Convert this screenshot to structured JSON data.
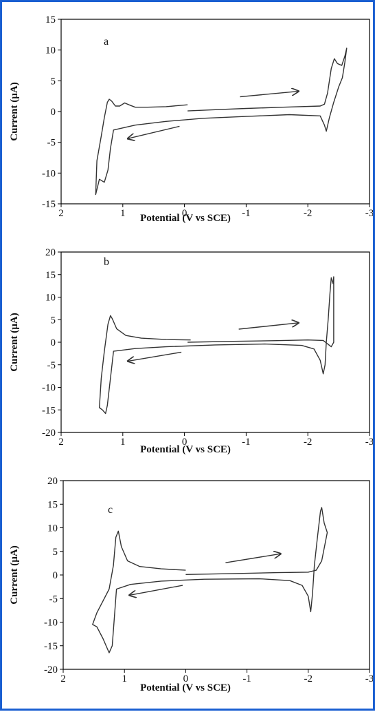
{
  "frame_color": "#1a5fd1",
  "line_color": "#333333",
  "chart_data": [
    {
      "type": "line",
      "label": "a",
      "xlabel": "Potential (V vs SCE)",
      "ylabel": "Current (µA)",
      "xlim": [
        2,
        -3
      ],
      "ylim": [
        -15,
        15
      ],
      "xticks": [
        "2",
        "1",
        "0",
        "-1",
        "-2",
        "-3"
      ],
      "yticks": [
        "15",
        "10",
        "5",
        "0",
        "-5",
        "-10",
        "-15"
      ],
      "ytick_values": [
        15,
        10,
        5,
        0,
        -5,
        -10,
        -15
      ],
      "xtick_values": [
        2,
        1,
        0,
        -1,
        -2,
        -3
      ],
      "grid": false,
      "series": [
        {
          "points": [
            [
              -0.05,
              1.1
            ],
            [
              0.3,
              0.8
            ],
            [
              0.6,
              0.7
            ],
            [
              0.8,
              0.7
            ],
            [
              0.9,
              1.1
            ],
            [
              0.97,
              1.4
            ],
            [
              1.05,
              0.9
            ],
            [
              1.12,
              0.9
            ],
            [
              1.18,
              1.7
            ],
            [
              1.22,
              2.0
            ],
            [
              1.25,
              1.5
            ],
            [
              1.3,
              -1.0
            ],
            [
              1.35,
              -4.0
            ],
            [
              1.42,
              -8.0
            ],
            [
              1.44,
              -13.5
            ],
            [
              1.38,
              -11.0
            ],
            [
              1.3,
              -11.5
            ],
            [
              1.24,
              -9.5
            ],
            [
              1.2,
              -6.0
            ],
            [
              1.15,
              -3.0
            ],
            [
              0.8,
              -2.2
            ],
            [
              0.3,
              -1.6
            ],
            [
              -0.3,
              -1.1
            ],
            [
              -1.0,
              -0.8
            ],
            [
              -1.7,
              -0.5
            ],
            [
              -2.2,
              -0.7
            ],
            [
              -2.27,
              -2.2
            ],
            [
              -2.3,
              -3.2
            ],
            [
              -2.35,
              -1.0
            ],
            [
              -2.42,
              1.5
            ],
            [
              -2.5,
              4.0
            ],
            [
              -2.56,
              5.5
            ],
            [
              -2.6,
              8.0
            ],
            [
              -2.63,
              10.3
            ],
            [
              -2.6,
              9.0
            ],
            [
              -2.55,
              7.5
            ],
            [
              -2.48,
              7.8
            ],
            [
              -2.43,
              8.6
            ],
            [
              -2.38,
              7.0
            ],
            [
              -2.32,
              3.0
            ],
            [
              -2.27,
              1.2
            ],
            [
              -2.2,
              0.9
            ],
            [
              -1.6,
              0.7
            ],
            [
              -1.0,
              0.5
            ],
            [
              -0.5,
              0.3
            ],
            [
              -0.05,
              0.1
            ]
          ]
        }
      ],
      "arrows": [
        {
          "x0": -0.9,
          "y0": 2.4,
          "x1": -1.85,
          "y1": 3.3
        },
        {
          "x0": 0.08,
          "y0": -2.4,
          "x1": 0.92,
          "y1": -4.4
        }
      ]
    },
    {
      "type": "line",
      "label": "b",
      "xlabel": "Potential (V vs SCE)",
      "ylabel": "Current (µA)",
      "xlim": [
        2,
        -3
      ],
      "ylim": [
        -20,
        20
      ],
      "xticks": [
        "2",
        "1",
        "0",
        "-1",
        "-2",
        "-3"
      ],
      "yticks": [
        "20",
        "15",
        "10",
        "5",
        "0",
        "-5",
        "-10",
        "-15",
        "-20"
      ],
      "ytick_values": [
        20,
        15,
        10,
        5,
        0,
        -5,
        -10,
        -15,
        -20
      ],
      "xtick_values": [
        2,
        1,
        0,
        -1,
        -2,
        -3
      ],
      "grid": false,
      "series": [
        {
          "points": [
            [
              -0.1,
              0.5
            ],
            [
              0.3,
              0.6
            ],
            [
              0.7,
              0.9
            ],
            [
              0.95,
              1.5
            ],
            [
              1.1,
              3.0
            ],
            [
              1.17,
              5.2
            ],
            [
              1.2,
              5.9
            ],
            [
              1.24,
              4.0
            ],
            [
              1.3,
              -2.0
            ],
            [
              1.35,
              -8.0
            ],
            [
              1.38,
              -14.5
            ],
            [
              1.33,
              -15.0
            ],
            [
              1.28,
              -15.8
            ],
            [
              1.25,
              -14.0
            ],
            [
              1.2,
              -8.0
            ],
            [
              1.15,
              -2.0
            ],
            [
              0.8,
              -1.4
            ],
            [
              0.3,
              -1.0
            ],
            [
              -0.5,
              -0.6
            ],
            [
              -1.3,
              -0.4
            ],
            [
              -1.9,
              -0.7
            ],
            [
              -2.1,
              -1.5
            ],
            [
              -2.2,
              -4.0
            ],
            [
              -2.25,
              -7.0
            ],
            [
              -2.28,
              -5.0
            ],
            [
              -2.3,
              0.0
            ],
            [
              -2.33,
              5.0
            ],
            [
              -2.36,
              11.0
            ],
            [
              -2.38,
              14.3
            ],
            [
              -2.41,
              13.0
            ],
            [
              -2.42,
              14.5
            ],
            [
              -2.42,
              0.0
            ],
            [
              -2.38,
              -1.0
            ],
            [
              -2.25,
              0.4
            ],
            [
              -2.0,
              0.5
            ],
            [
              -1.5,
              0.35
            ],
            [
              -0.8,
              0.2
            ],
            [
              -0.05,
              0.0
            ]
          ]
        }
      ],
      "arrows": [
        {
          "x0": -0.88,
          "y0": 2.9,
          "x1": -1.85,
          "y1": 4.3
        },
        {
          "x0": 0.05,
          "y0": -2.2,
          "x1": 0.92,
          "y1": -4.2
        }
      ]
    },
    {
      "type": "line",
      "label": "c",
      "xlabel": "Potential (V vs SCE)",
      "ylabel": "Current (µA)",
      "xlim": [
        2,
        -3
      ],
      "ylim": [
        -20,
        20
      ],
      "xticks": [
        "2",
        "1",
        "0",
        "-1",
        "-2",
        "-3"
      ],
      "yticks": [
        "20",
        "15",
        "10",
        "5",
        "0",
        "-5",
        "-10",
        "-15",
        "-20"
      ],
      "ytick_values": [
        20,
        15,
        10,
        5,
        0,
        -5,
        -10,
        -15,
        -20
      ],
      "xtick_values": [
        2,
        1,
        0,
        -1,
        -2,
        -3
      ],
      "grid": false,
      "series": [
        {
          "points": [
            [
              0.0,
              1.0
            ],
            [
              0.4,
              1.3
            ],
            [
              0.75,
              1.8
            ],
            [
              0.95,
              3.0
            ],
            [
              1.05,
              6.0
            ],
            [
              1.1,
              9.3
            ],
            [
              1.14,
              8.0
            ],
            [
              1.18,
              2.0
            ],
            [
              1.25,
              -3.0
            ],
            [
              1.35,
              -5.5
            ],
            [
              1.45,
              -8.0
            ],
            [
              1.52,
              -10.5
            ],
            [
              1.45,
              -11.0
            ],
            [
              1.35,
              -13.5
            ],
            [
              1.25,
              -16.5
            ],
            [
              1.2,
              -15.0
            ],
            [
              1.17,
              -10.0
            ],
            [
              1.13,
              -3.0
            ],
            [
              0.9,
              -2.0
            ],
            [
              0.4,
              -1.3
            ],
            [
              -0.3,
              -0.9
            ],
            [
              -1.2,
              -0.8
            ],
            [
              -1.7,
              -1.2
            ],
            [
              -1.9,
              -2.2
            ],
            [
              -2.0,
              -4.5
            ],
            [
              -2.04,
              -7.8
            ],
            [
              -2.07,
              -4.0
            ],
            [
              -2.1,
              2.0
            ],
            [
              -2.15,
              8.0
            ],
            [
              -2.2,
              13.5
            ],
            [
              -2.22,
              14.3
            ],
            [
              -2.26,
              11.0
            ],
            [
              -2.31,
              9.0
            ],
            [
              -2.22,
              3.0
            ],
            [
              -2.13,
              1.0
            ],
            [
              -2.0,
              0.6
            ],
            [
              -1.5,
              0.5
            ],
            [
              -0.8,
              0.3
            ],
            [
              0.0,
              0.1
            ]
          ]
        }
      ],
      "arrows": [
        {
          "x0": -0.65,
          "y0": 2.6,
          "x1": -1.55,
          "y1": 4.5
        },
        {
          "x0": 0.05,
          "y0": -2.2,
          "x1": 0.92,
          "y1": -4.3
        }
      ]
    }
  ]
}
